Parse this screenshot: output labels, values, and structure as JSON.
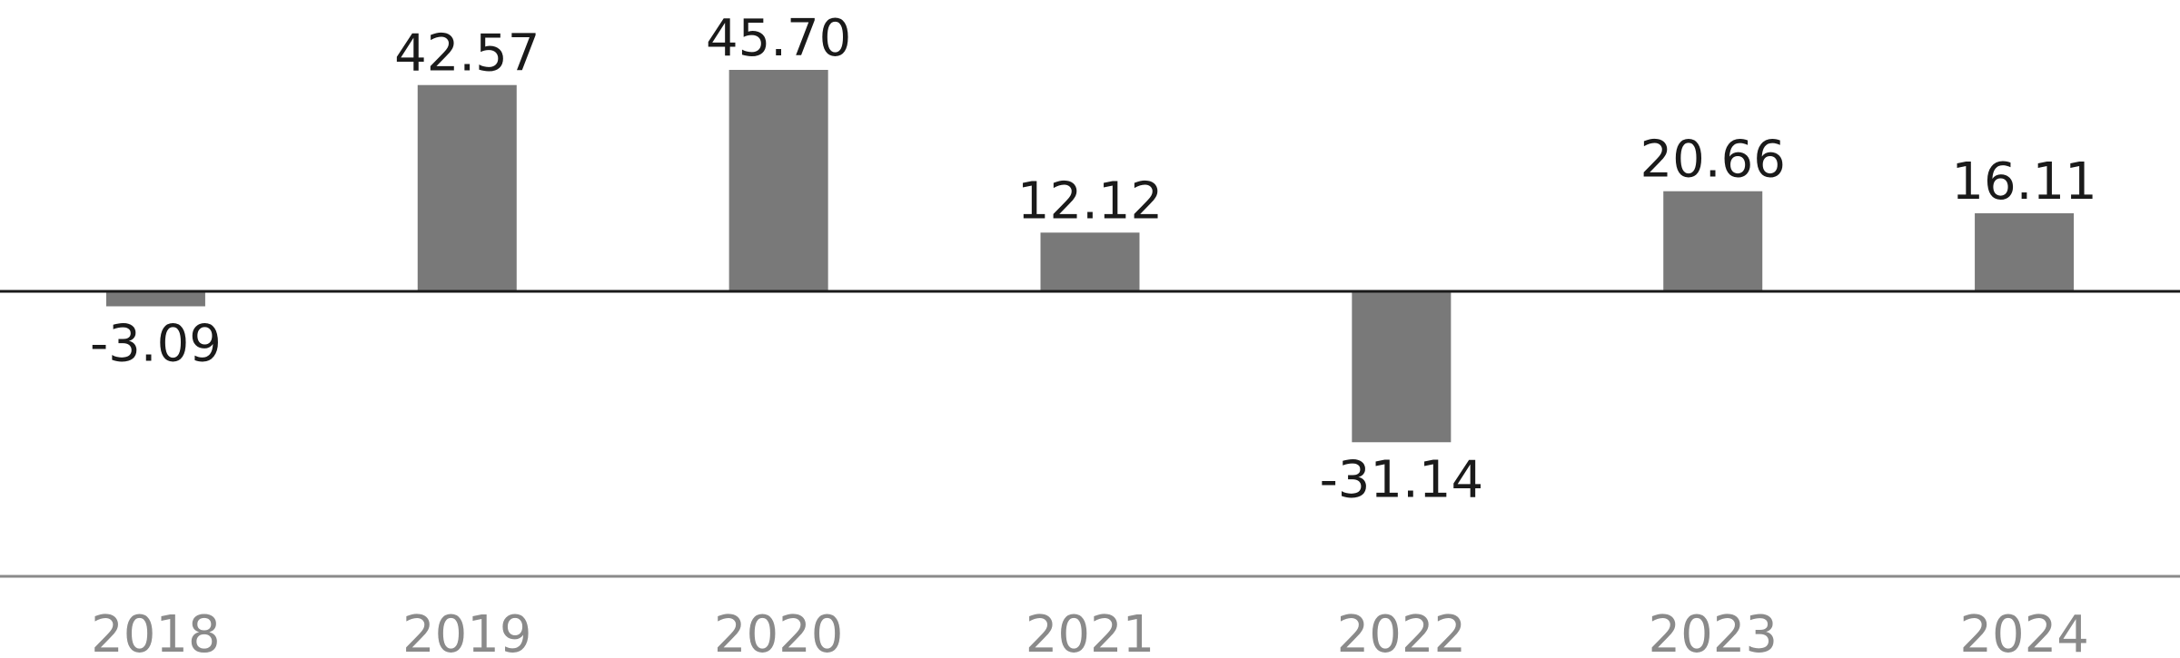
{
  "chart_data": {
    "type": "bar",
    "categories": [
      "2018",
      "2019",
      "2020",
      "2021",
      "2022",
      "2023",
      "2024"
    ],
    "values": [
      -3.09,
      42.57,
      45.7,
      12.12,
      -31.14,
      20.66,
      16.11
    ],
    "value_labels": [
      "-3.09",
      "42.57",
      "45.70",
      "12.12",
      "-31.14",
      "20.66",
      "16.11"
    ],
    "color": "#797979"
  }
}
